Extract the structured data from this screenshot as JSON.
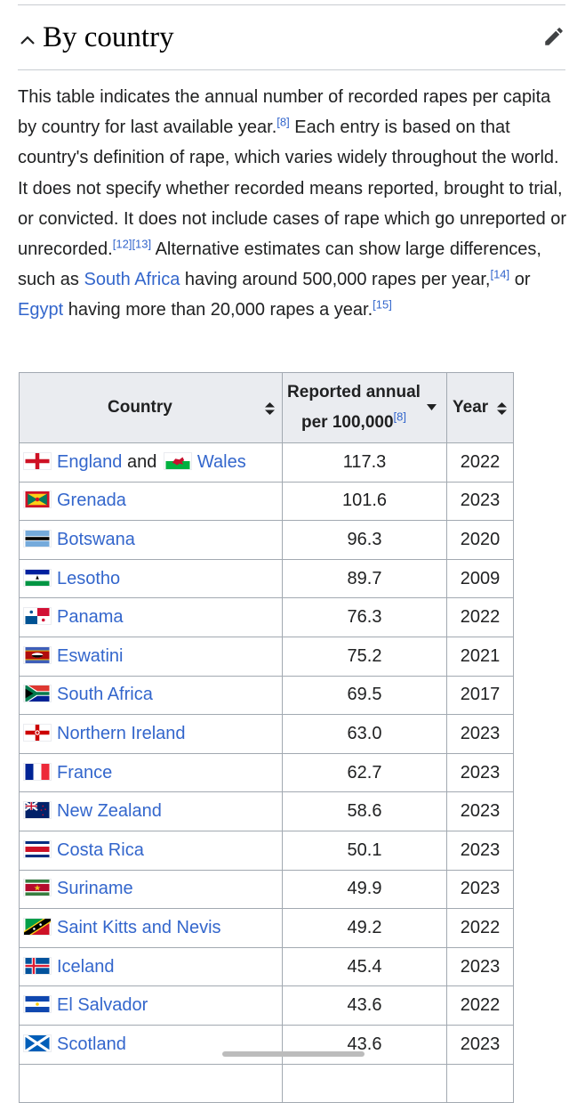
{
  "section": {
    "title": "By country"
  },
  "intro": {
    "t1": "This table indicates the annual number of recorded rapes per capita by country for last available year.",
    "ref1": "[8]",
    "t2": " Each entry is based on that country's definition of rape, which varies widely throughout the world. It does not specify whether recorded means reported, brought to trial, or convicted. It does not include cases of rape which go unreported or unrecorded.",
    "ref2": "[12]",
    "ref3": "[13]",
    "t3": " Alternative estimates can show large differences, such as ",
    "link1": "South Africa",
    "t4": " having around 500,000 rapes per year,",
    "ref4": "[14]",
    "t5": " or ",
    "link2": "Egypt",
    "t6": " having more than 20,000 rapes a year.",
    "ref5": "[15]"
  },
  "table": {
    "headers": {
      "country": "Country",
      "annual_line1": "Reported annual",
      "annual_line2": "per 100,000",
      "annual_ref": "[8]",
      "year": "Year"
    },
    "rows": [
      {
        "country": "England",
        "conj": "and",
        "country2": "Wales",
        "value": "117.3",
        "year": "2022"
      },
      {
        "country": "Grenada",
        "value": "101.6",
        "year": "2023"
      },
      {
        "country": "Botswana",
        "value": "96.3",
        "year": "2020"
      },
      {
        "country": "Lesotho",
        "value": "89.7",
        "year": "2009"
      },
      {
        "country": "Panama",
        "value": "76.3",
        "year": "2022"
      },
      {
        "country": "Eswatini",
        "value": "75.2",
        "year": "2021"
      },
      {
        "country": "South Africa",
        "value": "69.5",
        "year": "2017"
      },
      {
        "country": "Northern Ireland",
        "value": "63.0",
        "year": "2023"
      },
      {
        "country": "France",
        "value": "62.7",
        "year": "2023"
      },
      {
        "country": "New Zealand",
        "value": "58.6",
        "year": "2023"
      },
      {
        "country": "Costa Rica",
        "value": "50.1",
        "year": "2023"
      },
      {
        "country": "Suriname",
        "value": "49.9",
        "year": "2023"
      },
      {
        "country": "Saint Kitts and Nevis",
        "value": "49.2",
        "year": "2022"
      },
      {
        "country": "Iceland",
        "value": "45.4",
        "year": "2023"
      },
      {
        "country": "El Salvador",
        "value": "43.6",
        "year": "2022"
      },
      {
        "country": "Scotland",
        "value": "43.6",
        "year": "2023"
      }
    ]
  },
  "icons": {
    "collapse": "chevron-up-icon",
    "edit": "pencil-icon",
    "sort": "sort-both-icon",
    "sort_active": "sort-descending-icon"
  },
  "colors": {
    "link": "#3366cc",
    "header_bg": "#eaecf0",
    "border": "#a2a9b1"
  }
}
